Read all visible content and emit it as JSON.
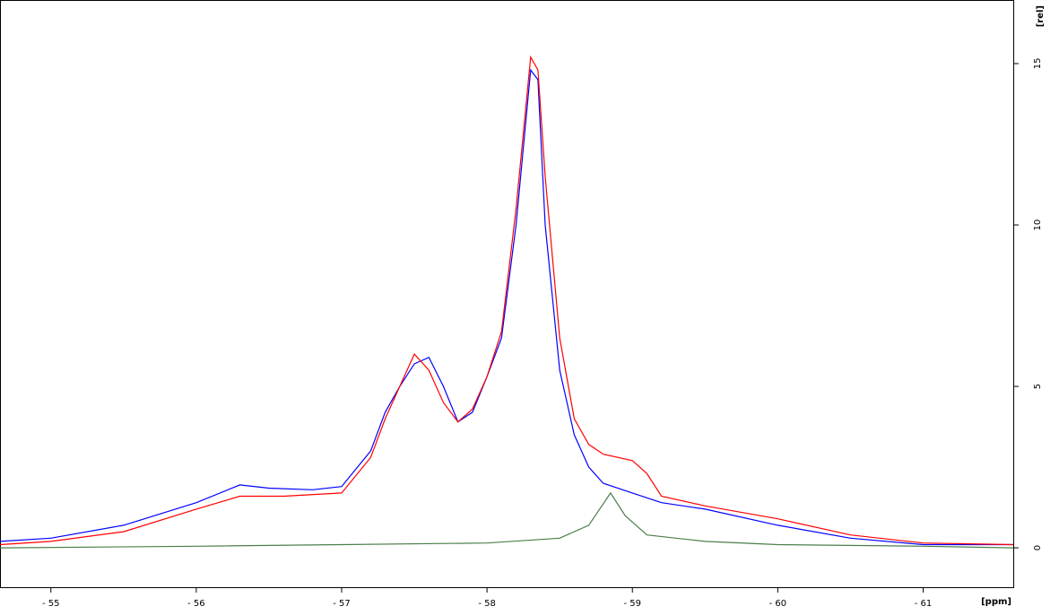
{
  "chart_data": {
    "type": "line",
    "x_label": "[ppm]",
    "y_label": "[rel]",
    "xlim": [
      -54.65,
      -61.62
    ],
    "ylim": [
      -1.22,
      16.97
    ],
    "xticks": [
      {
        "value": -55,
        "label": "- 55"
      },
      {
        "value": -56,
        "label": "- 56"
      },
      {
        "value": -57,
        "label": "- 57"
      },
      {
        "value": -58,
        "label": "- 58"
      },
      {
        "value": -59,
        "label": "- 59"
      },
      {
        "value": -60,
        "label": "- 60"
      },
      {
        "value": -61,
        "label": "- 61"
      }
    ],
    "yticks": [
      0,
      5,
      10,
      15
    ],
    "series": [
      {
        "color": "#0000ff",
        "x": [
          -54.65,
          -55,
          -55.5,
          -56,
          -56.3,
          -56.5,
          -56.8,
          -57,
          -57.2,
          -57.3,
          -57.4,
          -57.5,
          -57.6,
          -57.7,
          -57.8,
          -57.9,
          -58.0,
          -58.1,
          -58.2,
          -58.3,
          -58.35,
          -58.4,
          -58.5,
          -58.6,
          -58.7,
          -58.8,
          -59.0,
          -59.2,
          -59.5,
          -60,
          -60.5,
          -61,
          -61.62
        ],
        "values": [
          0.2,
          0.3,
          0.7,
          1.4,
          1.95,
          1.85,
          1.8,
          1.9,
          3.0,
          4.2,
          5.0,
          5.7,
          5.9,
          5.0,
          3.9,
          4.2,
          5.3,
          6.5,
          10,
          14.8,
          14.5,
          10,
          5.5,
          3.5,
          2.5,
          2.0,
          1.7,
          1.4,
          1.2,
          0.7,
          0.3,
          0.1,
          0.1
        ]
      },
      {
        "color": "#ff0000",
        "x": [
          -54.65,
          -55,
          -55.5,
          -56,
          -56.3,
          -56.6,
          -57,
          -57.2,
          -57.3,
          -57.4,
          -57.5,
          -57.6,
          -57.7,
          -57.8,
          -57.9,
          -58.0,
          -58.1,
          -58.2,
          -58.3,
          -58.35,
          -58.4,
          -58.5,
          -58.6,
          -58.7,
          -58.8,
          -59.0,
          -59.1,
          -59.2,
          -59.5,
          -60,
          -60.5,
          -61,
          -61.62
        ],
        "values": [
          0.1,
          0.2,
          0.5,
          1.2,
          1.6,
          1.6,
          1.7,
          2.8,
          4.0,
          5.0,
          6.0,
          5.5,
          4.5,
          3.9,
          4.3,
          5.3,
          6.7,
          10.5,
          15.2,
          14.8,
          11.5,
          6.5,
          4.0,
          3.2,
          2.9,
          2.7,
          2.3,
          1.6,
          1.3,
          0.9,
          0.4,
          0.15,
          0.1
        ]
      },
      {
        "color": "#4a7f4a",
        "x": [
          -54.65,
          -56,
          -57,
          -58,
          -58.5,
          -58.7,
          -58.85,
          -58.95,
          -59.1,
          -59.5,
          -60,
          -61,
          -61.62
        ],
        "values": [
          0,
          0.05,
          0.1,
          0.15,
          0.3,
          0.7,
          1.7,
          1.0,
          0.4,
          0.2,
          0.1,
          0.05,
          0
        ]
      }
    ]
  }
}
